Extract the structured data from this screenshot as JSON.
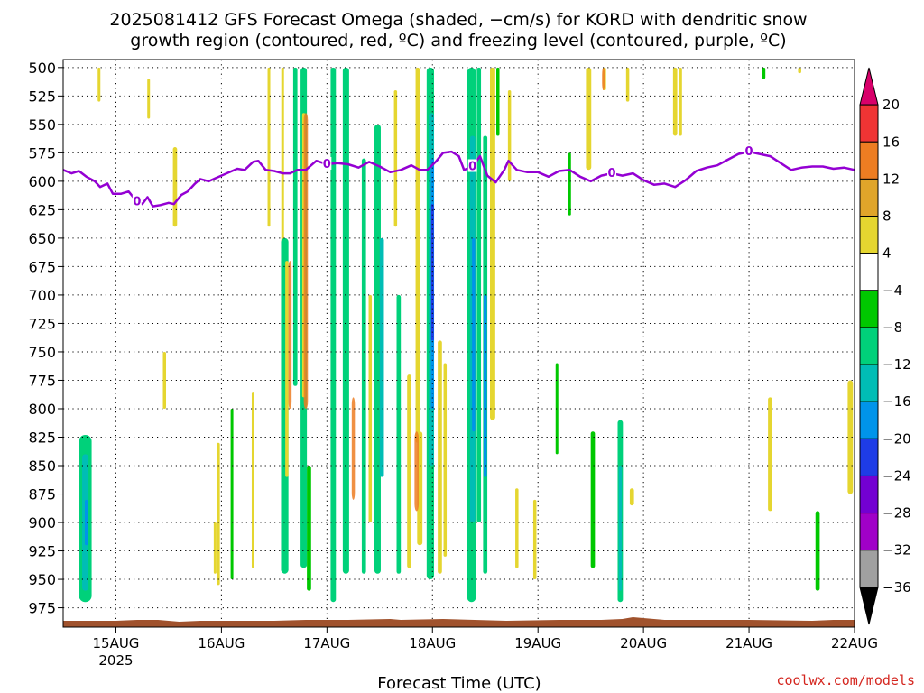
{
  "title": {
    "line1": "2025081412 GFS Forecast Omega (shaded, −cm/s) for KORD with dendritic snow",
    "line2": "growth region (contoured, red, ºC) and freezing level (contoured, purple, ºC)"
  },
  "credit": "coolwx.com/models",
  "chart_data": {
    "type": "heatmap",
    "title": "2025081412 GFS Forecast Omega (shaded, −cm/s) for KORD with dendritic snow growth region (contoured, red, ºC) and freezing level (contoured, purple, ºC)",
    "xlabel": "Forecast Time (UTC)",
    "ylabel": "",
    "x_ticks": [
      {
        "label": "15AUG",
        "sub": "2025",
        "day": 1
      },
      {
        "label": "16AUG",
        "sub": "",
        "day": 2
      },
      {
        "label": "17AUG",
        "sub": "",
        "day": 3
      },
      {
        "label": "18AUG",
        "sub": "",
        "day": 4
      },
      {
        "label": "19AUG",
        "sub": "",
        "day": 5
      },
      {
        "label": "20AUG",
        "sub": "",
        "day": 6
      },
      {
        "label": "21AUG",
        "sub": "",
        "day": 7
      },
      {
        "label": "22AUG",
        "sub": "",
        "day": 8
      }
    ],
    "xlim_days": [
      0.5,
      8.0
    ],
    "y_ticks": [
      500,
      525,
      550,
      575,
      600,
      625,
      650,
      675,
      700,
      725,
      750,
      775,
      800,
      825,
      850,
      875,
      900,
      925,
      950,
      975
    ],
    "ylim": [
      493,
      992
    ],
    "grid": true,
    "colorbar": {
      "labels": [
        "20",
        "16",
        "12",
        "8",
        "4",
        "−4",
        "−8",
        "−12",
        "−16",
        "−20",
        "−24",
        "−28",
        "−32",
        "−36"
      ],
      "colors": [
        "#d8006a",
        "#ef3434",
        "#ed7d22",
        "#e0a52a",
        "#e5d630",
        "#ffffff",
        "#00c800",
        "#00d17a",
        "#00bdb5",
        "#0094ea",
        "#1e3ce6",
        "#7300d2",
        "#a000c8",
        "#a0a0a0",
        "#000000"
      ]
    },
    "freezing_level": {
      "label": "0",
      "color": "#9400d3",
      "points": [
        [
          0.5,
          590
        ],
        [
          0.58,
          593
        ],
        [
          0.65,
          591
        ],
        [
          0.72,
          596
        ],
        [
          0.8,
          600
        ],
        [
          0.85,
          605
        ],
        [
          0.92,
          602
        ],
        [
          0.97,
          611
        ],
        [
          1.05,
          611
        ],
        [
          1.12,
          609
        ],
        [
          1.2,
          618
        ],
        [
          1.25,
          620
        ],
        [
          1.3,
          614
        ],
        [
          1.35,
          622
        ],
        [
          1.42,
          621
        ],
        [
          1.5,
          619
        ],
        [
          1.55,
          620
        ],
        [
          1.62,
          612
        ],
        [
          1.68,
          609
        ],
        [
          1.75,
          602
        ],
        [
          1.8,
          598
        ],
        [
          1.88,
          600
        ],
        [
          1.95,
          597
        ],
        [
          2.05,
          593
        ],
        [
          2.15,
          589
        ],
        [
          2.22,
          590
        ],
        [
          2.3,
          583
        ],
        [
          2.35,
          582
        ],
        [
          2.42,
          590
        ],
        [
          2.5,
          591
        ],
        [
          2.58,
          593
        ],
        [
          2.65,
          593
        ],
        [
          2.72,
          590
        ],
        [
          2.8,
          590
        ],
        [
          2.9,
          582
        ],
        [
          3.0,
          585
        ],
        [
          3.1,
          584
        ],
        [
          3.2,
          585
        ],
        [
          3.3,
          588
        ],
        [
          3.4,
          583
        ],
        [
          3.5,
          587
        ],
        [
          3.6,
          592
        ],
        [
          3.7,
          590
        ],
        [
          3.8,
          586
        ],
        [
          3.88,
          590
        ],
        [
          3.95,
          590
        ],
        [
          4.03,
          583
        ],
        [
          4.1,
          575
        ],
        [
          4.18,
          574
        ],
        [
          4.25,
          578
        ],
        [
          4.3,
          590
        ],
        [
          4.38,
          587
        ],
        [
          4.45,
          578
        ],
        [
          4.52,
          595
        ],
        [
          4.6,
          601
        ],
        [
          4.68,
          590
        ],
        [
          4.72,
          582
        ],
        [
          4.8,
          590
        ],
        [
          4.9,
          592
        ],
        [
          5.0,
          592
        ],
        [
          5.1,
          596
        ],
        [
          5.2,
          591
        ],
        [
          5.3,
          590
        ],
        [
          5.4,
          596
        ],
        [
          5.5,
          600
        ],
        [
          5.6,
          595
        ],
        [
          5.7,
          593
        ],
        [
          5.8,
          595
        ],
        [
          5.9,
          593
        ],
        [
          6.0,
          599
        ],
        [
          6.1,
          603
        ],
        [
          6.2,
          602
        ],
        [
          6.3,
          605
        ],
        [
          6.4,
          599
        ],
        [
          6.5,
          591
        ],
        [
          6.6,
          588
        ],
        [
          6.7,
          586
        ],
        [
          6.8,
          581
        ],
        [
          6.9,
          576
        ],
        [
          7.0,
          574
        ],
        [
          7.1,
          576
        ],
        [
          7.2,
          578
        ],
        [
          7.3,
          584
        ],
        [
          7.4,
          590
        ],
        [
          7.5,
          588
        ],
        [
          7.6,
          587
        ],
        [
          7.7,
          587
        ],
        [
          7.8,
          589
        ],
        [
          7.9,
          588
        ],
        [
          8.0,
          590
        ]
      ]
    },
    "omega_regions": [
      {
        "x": 0.71,
        "top": 823,
        "bottom": 970,
        "w": 0.12,
        "cls": 2
      },
      {
        "x": 0.71,
        "top": 840,
        "bottom": 960,
        "w": 0.06,
        "cls": 3
      },
      {
        "x": 0.72,
        "top": 880,
        "bottom": 920,
        "w": 0.03,
        "cls": 4
      },
      {
        "x": 0.84,
        "top": 500,
        "bottom": 530,
        "w": 0.02,
        "cls": 1
      },
      {
        "x": 1.31,
        "top": 510,
        "bottom": 545,
        "w": 0.02,
        "cls": 1
      },
      {
        "x": 1.46,
        "top": 750,
        "bottom": 800,
        "w": 0.03,
        "cls": 1
      },
      {
        "x": 1.56,
        "top": 570,
        "bottom": 640,
        "w": 0.04,
        "cls": 1
      },
      {
        "x": 1.94,
        "top": 900,
        "bottom": 945,
        "w": 0.02,
        "cls": 1
      },
      {
        "x": 1.97,
        "top": 830,
        "bottom": 955,
        "w": 0.03,
        "cls": 1
      },
      {
        "x": 2.1,
        "top": 800,
        "bottom": 950,
        "w": 0.02,
        "cls": 0
      },
      {
        "x": 2.3,
        "top": 785,
        "bottom": 940,
        "w": 0.02,
        "cls": 1
      },
      {
        "x": 2.45,
        "top": 500,
        "bottom": 640,
        "w": 0.02,
        "cls": 1
      },
      {
        "x": 2.58,
        "top": 500,
        "bottom": 660,
        "w": 0.02,
        "cls": 1
      },
      {
        "x": 2.6,
        "top": 650,
        "bottom": 945,
        "w": 0.07,
        "cls": 2
      },
      {
        "x": 2.62,
        "top": 670,
        "bottom": 860,
        "w": 0.03,
        "cls": 1
      },
      {
        "x": 2.7,
        "top": 500,
        "bottom": 780,
        "w": 0.04,
        "cls": 2
      },
      {
        "x": 2.78,
        "top": 500,
        "bottom": 940,
        "w": 0.06,
        "cls": 2
      },
      {
        "x": 2.78,
        "top": 540,
        "bottom": 790,
        "w": 0.03,
        "cls": 1
      },
      {
        "x": 2.83,
        "top": 850,
        "bottom": 960,
        "w": 0.04,
        "cls": 0
      },
      {
        "x": 3.06,
        "top": 500,
        "bottom": 970,
        "w": 0.05,
        "cls": 2
      },
      {
        "x": 3.18,
        "top": 500,
        "bottom": 945,
        "w": 0.06,
        "cls": 2
      },
      {
        "x": 3.35,
        "top": 580,
        "bottom": 945,
        "w": 0.04,
        "cls": 2
      },
      {
        "x": 3.41,
        "top": 700,
        "bottom": 900,
        "w": 0.03,
        "cls": 1
      },
      {
        "x": 3.48,
        "top": 550,
        "bottom": 945,
        "w": 0.06,
        "cls": 2
      },
      {
        "x": 3.52,
        "top": 650,
        "bottom": 860,
        "w": 0.04,
        "cls": 3
      },
      {
        "x": 3.65,
        "top": 520,
        "bottom": 640,
        "w": 0.03,
        "cls": 1
      },
      {
        "x": 3.68,
        "top": 700,
        "bottom": 945,
        "w": 0.04,
        "cls": 2
      },
      {
        "x": 3.78,
        "top": 770,
        "bottom": 940,
        "w": 0.04,
        "cls": 1
      },
      {
        "x": 3.86,
        "top": 500,
        "bottom": 830,
        "w": 0.04,
        "cls": 1
      },
      {
        "x": 3.88,
        "top": 820,
        "bottom": 920,
        "w": 0.05,
        "cls": 1
      },
      {
        "x": 3.98,
        "top": 500,
        "bottom": 950,
        "w": 0.07,
        "cls": 2
      },
      {
        "x": 3.99,
        "top": 540,
        "bottom": 850,
        "w": 0.05,
        "cls": 3
      },
      {
        "x": 4.0,
        "top": 580,
        "bottom": 800,
        "w": 0.03,
        "cls": 4
      },
      {
        "x": 4.0,
        "top": 620,
        "bottom": 740,
        "w": 0.02,
        "cls": 5
      },
      {
        "x": 4.07,
        "top": 740,
        "bottom": 945,
        "w": 0.04,
        "cls": 1
      },
      {
        "x": 4.12,
        "top": 760,
        "bottom": 930,
        "w": 0.03,
        "cls": 1
      },
      {
        "x": 4.37,
        "top": 500,
        "bottom": 970,
        "w": 0.08,
        "cls": 2
      },
      {
        "x": 4.38,
        "top": 560,
        "bottom": 900,
        "w": 0.05,
        "cls": 3
      },
      {
        "x": 4.39,
        "top": 650,
        "bottom": 820,
        "w": 0.03,
        "cls": 4
      },
      {
        "x": 4.44,
        "top": 500,
        "bottom": 900,
        "w": 0.04,
        "cls": 2
      },
      {
        "x": 4.5,
        "top": 560,
        "bottom": 945,
        "w": 0.04,
        "cls": 2
      },
      {
        "x": 4.5,
        "top": 700,
        "bottom": 860,
        "w": 0.03,
        "cls": 4
      },
      {
        "x": 4.57,
        "top": 500,
        "bottom": 810,
        "w": 0.05,
        "cls": 1
      },
      {
        "x": 4.62,
        "top": 500,
        "bottom": 560,
        "w": 0.03,
        "cls": 0
      },
      {
        "x": 4.73,
        "top": 520,
        "bottom": 600,
        "w": 0.03,
        "cls": 1
      },
      {
        "x": 4.8,
        "top": 870,
        "bottom": 940,
        "w": 0.03,
        "cls": 1
      },
      {
        "x": 4.97,
        "top": 880,
        "bottom": 950,
        "w": 0.03,
        "cls": 1
      },
      {
        "x": 5.18,
        "top": 760,
        "bottom": 840,
        "w": 0.02,
        "cls": 0
      },
      {
        "x": 5.3,
        "top": 575,
        "bottom": 630,
        "w": 0.02,
        "cls": 0
      },
      {
        "x": 5.48,
        "top": 500,
        "bottom": 590,
        "w": 0.05,
        "cls": 1
      },
      {
        "x": 5.52,
        "top": 820,
        "bottom": 940,
        "w": 0.04,
        "cls": 0
      },
      {
        "x": 5.63,
        "top": 500,
        "bottom": 520,
        "w": 0.03,
        "cls": 1
      },
      {
        "x": 5.78,
        "top": 810,
        "bottom": 970,
        "w": 0.05,
        "cls": 2
      },
      {
        "x": 5.78,
        "top": 850,
        "bottom": 960,
        "w": 0.03,
        "cls": 3
      },
      {
        "x": 5.85,
        "top": 500,
        "bottom": 530,
        "w": 0.03,
        "cls": 1
      },
      {
        "x": 5.89,
        "top": 870,
        "bottom": 885,
        "w": 0.04,
        "cls": 1
      },
      {
        "x": 6.3,
        "top": 500,
        "bottom": 560,
        "w": 0.04,
        "cls": 1
      },
      {
        "x": 6.35,
        "top": 500,
        "bottom": 560,
        "w": 0.03,
        "cls": 1
      },
      {
        "x": 7.14,
        "top": 500,
        "bottom": 510,
        "w": 0.03,
        "cls": 0
      },
      {
        "x": 7.2,
        "top": 790,
        "bottom": 890,
        "w": 0.04,
        "cls": 1
      },
      {
        "x": 7.48,
        "top": 500,
        "bottom": 505,
        "w": 0.03,
        "cls": 1
      },
      {
        "x": 7.65,
        "top": 890,
        "bottom": 960,
        "w": 0.04,
        "cls": 0
      },
      {
        "x": 7.96,
        "top": 775,
        "bottom": 875,
        "w": 0.05,
        "cls": 1
      }
    ],
    "omega_class_colors": [
      "#00c800",
      "#e5d630",
      "#00d17a",
      "#00bdb5",
      "#0094ea",
      "#1e3ce6"
    ],
    "dgz_regions": [
      {
        "x": 2.65,
        "top": 670,
        "bottom": 800,
        "w": 0.03
      },
      {
        "x": 2.8,
        "top": 540,
        "bottom": 800,
        "w": 0.04
      },
      {
        "x": 3.25,
        "top": 790,
        "bottom": 880,
        "w": 0.03
      },
      {
        "x": 3.85,
        "top": 820,
        "bottom": 890,
        "w": 0.04
      },
      {
        "x": 5.62,
        "top": 500,
        "bottom": 520,
        "w": 0.02
      }
    ],
    "dgz_color": "#ed7d22",
    "terrain_color": "#a0522d"
  }
}
